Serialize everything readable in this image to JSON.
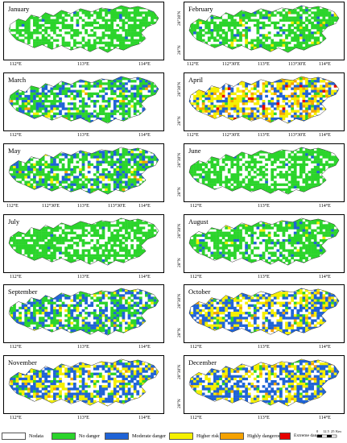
{
  "panels": [
    {
      "month": "January",
      "y1": "28°30'N",
      "y2": "28°N",
      "x": [
        "112°E",
        "113°E",
        "114°E"
      ],
      "mix": {
        "nodata": 0.18,
        "no": 0.8,
        "mod": 0.02,
        "high": 0,
        "hd": 0,
        "ext": 0
      }
    },
    {
      "month": "February",
      "y1": "28°30'N",
      "y2": "28°N",
      "x": [
        "112°E",
        "112°30'E",
        "113°E",
        "113°30'E",
        "114°E"
      ],
      "mix": {
        "nodata": 0.18,
        "no": 0.74,
        "mod": 0.04,
        "high": 0.03,
        "hd": 0.01,
        "ext": 0
      }
    },
    {
      "month": "March",
      "y1": "28°30'N",
      "y2": "28°N",
      "x": [
        "112°E",
        "113°E",
        "114°E"
      ],
      "mix": {
        "nodata": 0.18,
        "no": 0.52,
        "mod": 0.24,
        "high": 0.05,
        "hd": 0.01,
        "ext": 0
      }
    },
    {
      "month": "April",
      "y1": "28°30'N",
      "y2": "28°N",
      "x": [
        "112°E",
        "112°30'E",
        "113°E",
        "113°30'E",
        "114°E"
      ],
      "mix": {
        "nodata": 0.15,
        "no": 0.05,
        "mod": 0.25,
        "high": 0.38,
        "hd": 0.15,
        "ext": 0.02
      }
    },
    {
      "month": "May",
      "y1": "28°30'N",
      "y2": "28°N",
      "x": [
        "112°E",
        "112°30'E",
        "113°E",
        "113°30'E",
        "114°E"
      ],
      "mix": {
        "nodata": 0.18,
        "no": 0.5,
        "mod": 0.26,
        "high": 0.05,
        "hd": 0.01,
        "ext": 0
      }
    },
    {
      "month": "June",
      "y1": "28°30'N",
      "y2": "28°N",
      "x": [
        "112°E",
        "113°E",
        "114°E"
      ],
      "mix": {
        "nodata": 0.18,
        "no": 0.8,
        "mod": 0.02,
        "high": 0,
        "hd": 0,
        "ext": 0
      }
    },
    {
      "month": "July",
      "y1": "28°30'N",
      "y2": "28°N",
      "x": [
        "112°E",
        "113°E",
        "114°E"
      ],
      "mix": {
        "nodata": 0.18,
        "no": 0.8,
        "mod": 0.02,
        "high": 0,
        "hd": 0,
        "ext": 0
      }
    },
    {
      "month": "August",
      "y1": "28°30'N",
      "y2": "28°N",
      "x": [
        "112°E",
        "113°E",
        "114°E"
      ],
      "mix": {
        "nodata": 0.18,
        "no": 0.7,
        "mod": 0.1,
        "high": 0.02,
        "hd": 0,
        "ext": 0
      }
    },
    {
      "month": "September",
      "y1": "28°30'N",
      "y2": "28°N",
      "x": [
        "112°E",
        "113°E",
        "114°E"
      ],
      "mix": {
        "nodata": 0.18,
        "no": 0.45,
        "mod": 0.3,
        "high": 0.06,
        "hd": 0.01,
        "ext": 0
      }
    },
    {
      "month": "October",
      "y1": "28°30'N",
      "y2": "28°N",
      "x": [
        "112°E",
        "113°E",
        "114°E"
      ],
      "mix": {
        "nodata": 0.16,
        "no": 0.05,
        "mod": 0.45,
        "high": 0.3,
        "hd": 0.04,
        "ext": 0
      }
    },
    {
      "month": "November",
      "y1": "28°30'N",
      "y2": "28°N",
      "x": [
        "112°E",
        "113°E",
        "114°E"
      ],
      "mix": {
        "nodata": 0.16,
        "no": 0.1,
        "mod": 0.45,
        "high": 0.26,
        "hd": 0.03,
        "ext": 0
      }
    },
    {
      "month": "December",
      "y1": "28°30'N",
      "y2": "28°N",
      "x": [
        "112°E",
        "113°E",
        "114°E"
      ],
      "mix": {
        "nodata": 0.16,
        "no": 0.05,
        "mod": 0.45,
        "high": 0.3,
        "hd": 0.04,
        "ext": 0
      }
    }
  ],
  "legend": [
    {
      "label": "Nodata",
      "color": "#ffffff"
    },
    {
      "label": "No danger",
      "color": "#2bd42b"
    },
    {
      "label": "Moderate danger",
      "color": "#1f63d6"
    },
    {
      "label": "Higher risk",
      "color": "#f5f000"
    },
    {
      "label": "Highly dangerous",
      "color": "#f5a200"
    },
    {
      "label": "Extreme danger",
      "color": "#e60000"
    }
  ],
  "scale": {
    "ticks": [
      "0",
      "12.5",
      "25"
    ],
    "unit": "Km"
  }
}
